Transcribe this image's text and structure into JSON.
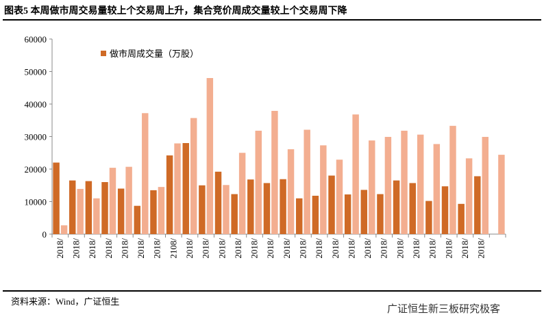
{
  "chart_data": {
    "type": "bar",
    "title": "图表5 本周做市周交易量较上个交易周上升，集合竞价周成交量较上个交易周下降",
    "source": "资料来源：Wind，广证恒生",
    "watermark": "广证恒生新三板研究极客",
    "categories": [
      "2018/",
      "2018/",
      "2018/",
      "2018/",
      "2018/",
      "2018/",
      "2018/",
      "2108/",
      "2018/",
      "2018/",
      "2018/",
      "2018/",
      "2018/",
      "2018/",
      "2018/",
      "2018/",
      "2018/",
      "2018/",
      "2018/",
      "2018/",
      "2018/",
      "2018/",
      "2018/",
      "2018/",
      "2018/",
      "2018/",
      "2018/",
      null
    ],
    "series": [
      {
        "name": "做市周成交量（万股）",
        "color": "#cf6a26",
        "values": [
          22000,
          16500,
          16300,
          16000,
          14000,
          8700,
          13500,
          24200,
          28000,
          15000,
          19200,
          12300,
          16800,
          15700,
          16900,
          11000,
          11800,
          18000,
          12200,
          13600,
          12300,
          16500,
          15700,
          10200,
          14700,
          9300,
          17800,
          null
        ]
      },
      {
        "color": "#f3ae90",
        "values": [
          2700,
          13900,
          11000,
          20400,
          20700,
          37200,
          14500,
          27900,
          35700,
          48000,
          15100,
          25000,
          31800,
          37900,
          26100,
          32100,
          27300,
          22900,
          36800,
          28800,
          29900,
          31800,
          30600,
          27700,
          33300,
          23300,
          29900,
          24400
        ]
      }
    ],
    "ylim": [
      0,
      60000
    ],
    "yticks": [
      0,
      10000,
      20000,
      30000,
      40000,
      50000,
      60000
    ],
    "legend": "top-left"
  }
}
